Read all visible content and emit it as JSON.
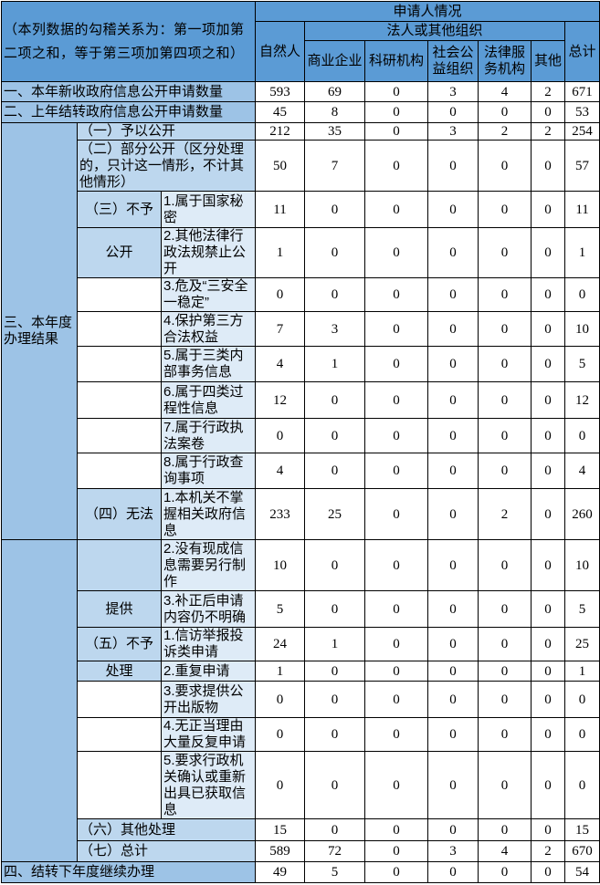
{
  "table": {
    "note": "（本列数据的勾稽关系为：第一项加第二项之和，等于第三项加第四项之和）",
    "header": {
      "applicant": "申请人情况",
      "natural": "自然人",
      "legal_org": "法人或其他组织",
      "total": "总计",
      "org_types": [
        "商业企业",
        "科研机构",
        "社会公益组织",
        "法律服务机构",
        "其他"
      ]
    },
    "columns": [
      "自然人",
      "商业企业",
      "科研机构",
      "社会公益组织",
      "法律服务机构",
      "其他",
      "总计"
    ],
    "rows": [
      {
        "label": "一、本年新收政府信息公开申请数量",
        "values": [
          593,
          69,
          0,
          3,
          4,
          2,
          671
        ]
      },
      {
        "label": "二、上年结转政府信息公开申请数量",
        "values": [
          45,
          8,
          0,
          0,
          0,
          0,
          53
        ]
      },
      {
        "label": "四、结转下年度继续办理",
        "values": [
          49,
          5,
          0,
          0,
          0,
          0,
          54
        ]
      }
    ],
    "section3": {
      "label": "三、本年度办理结果",
      "rows": [
        {
          "label": "（一）予以公开",
          "values": [
            212,
            35,
            0,
            3,
            2,
            2,
            254
          ]
        },
        {
          "label": "（二）部分公开（区分处理的，只计这一情形，不计其他情形）",
          "values": [
            50,
            7,
            0,
            0,
            0,
            0,
            57
          ]
        },
        {
          "group": "（三）不予",
          "item": "1.属于国家秘密",
          "values": [
            11,
            0,
            0,
            0,
            0,
            0,
            11
          ]
        },
        {
          "group": "公开",
          "item": "2.其他法律行政法规禁止公开",
          "values": [
            1,
            0,
            0,
            0,
            0,
            0,
            1
          ]
        },
        {
          "group": "",
          "item": "3.危及“三安全一稳定”",
          "values": [
            0,
            0,
            0,
            0,
            0,
            0,
            0
          ]
        },
        {
          "group": "",
          "item": "4.保护第三方合法权益",
          "values": [
            7,
            3,
            0,
            0,
            0,
            0,
            10
          ]
        },
        {
          "group": "",
          "item": "5.属于三类内部事务信息",
          "values": [
            4,
            1,
            0,
            0,
            0,
            0,
            5
          ]
        },
        {
          "group": "",
          "item": "6.属于四类过程性信息",
          "values": [
            12,
            0,
            0,
            0,
            0,
            0,
            12
          ]
        },
        {
          "group": "",
          "item": "7.属于行政执法案卷",
          "values": [
            0,
            0,
            0,
            0,
            0,
            0,
            0
          ]
        },
        {
          "group": "",
          "item": "8.属于行政查询事项",
          "values": [
            4,
            0,
            0,
            0,
            0,
            0,
            4
          ]
        },
        {
          "group": "（四）无法",
          "item": "1.本机关不掌握相关政府信息",
          "values": [
            233,
            25,
            0,
            0,
            2,
            0,
            260
          ]
        },
        {
          "group": "",
          "item": "2.没有现成信息需要另行制作",
          "values": [
            10,
            0,
            0,
            0,
            0,
            0,
            10
          ]
        },
        {
          "group": "提供",
          "item": "3.补正后申请内容仍不明确",
          "values": [
            5,
            0,
            0,
            0,
            0,
            0,
            5
          ]
        },
        {
          "group": "（五）不予",
          "item": "1.信访举报投诉类申请",
          "values": [
            24,
            1,
            0,
            0,
            0,
            0,
            25
          ]
        },
        {
          "group": "处理",
          "item": "2.重复申请",
          "values": [
            1,
            0,
            0,
            0,
            0,
            0,
            1
          ]
        },
        {
          "group": "",
          "item": "3.要求提供公开出版物",
          "values": [
            0,
            0,
            0,
            0,
            0,
            0,
            0
          ]
        },
        {
          "group": "",
          "item": "4.无正当理由大量反复申请",
          "values": [
            0,
            0,
            0,
            0,
            0,
            0,
            0
          ]
        },
        {
          "group": "",
          "item": "5.要求行政机关确认或重新出具已获取信息",
          "values": [
            0,
            0,
            0,
            0,
            0,
            0,
            0
          ]
        },
        {
          "label": "（六）其他处理",
          "values": [
            15,
            0,
            0,
            0,
            0,
            0,
            15
          ]
        },
        {
          "label": "（七）总计",
          "values": [
            589,
            72,
            0,
            3,
            4,
            2,
            670
          ]
        }
      ]
    }
  }
}
